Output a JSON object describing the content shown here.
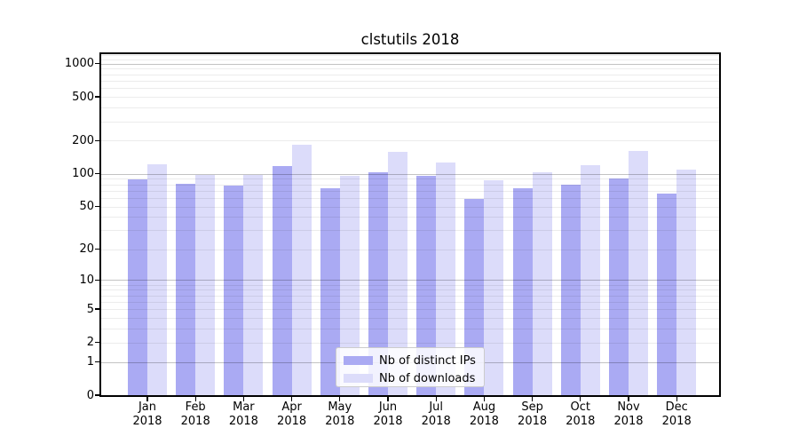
{
  "chart_data": {
    "type": "bar",
    "title": "clstutils 2018",
    "categories": [
      "Jan",
      "Feb",
      "Mar",
      "Apr",
      "May",
      "Jun",
      "Jul",
      "Aug",
      "Sep",
      "Oct",
      "Nov",
      "Dec"
    ],
    "x_sublabel": "2018",
    "series": [
      {
        "name": "Nb of distinct IPs",
        "color": "#aaaaf3",
        "values": [
          89,
          81,
          78,
          117,
          73,
          104,
          96,
          59,
          73,
          80,
          91,
          66
        ]
      },
      {
        "name": "Nb of downloads",
        "color": "#dcdcfa",
        "values": [
          123,
          98,
          97,
          183,
          96,
          158,
          126,
          88,
          104,
          120,
          161,
          109
        ]
      }
    ],
    "xlabel": "",
    "ylabel": "",
    "yscale": "log1p",
    "yticks": [
      1000,
      500,
      200,
      100,
      50,
      20,
      10,
      5,
      2,
      1,
      0
    ],
    "ylim": [
      0,
      1220
    ],
    "grid": "on",
    "legend_position": "lower center"
  },
  "colors": {
    "bar_dark": "#aaaaf3",
    "bar_light": "#dcdcfa",
    "grid_major": "#c3c3c3",
    "grid_minor": "#ececec",
    "spine": "#000000",
    "legend_border": "#cccccc"
  }
}
